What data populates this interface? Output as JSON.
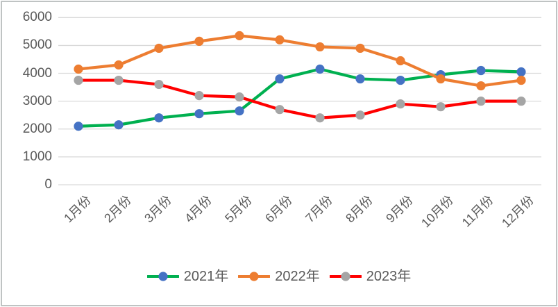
{
  "chart_data": {
    "type": "line",
    "categories": [
      "1月份",
      "2月份",
      "3月份",
      "4月份",
      "5月份",
      "6月份",
      "7月份",
      "8月份",
      "9月份",
      "10月份",
      "11月份",
      "12月份"
    ],
    "series": [
      {
        "name": "2021年",
        "line_color": "#00B050",
        "marker_color": "#4472C4",
        "values": [
          2100,
          2150,
          2400,
          2550,
          2650,
          3800,
          4150,
          3800,
          3750,
          3950,
          4100,
          4050
        ]
      },
      {
        "name": "2022年",
        "line_color": "#ED7D31",
        "marker_color": "#ED7D31",
        "values": [
          4150,
          4300,
          4900,
          5150,
          5350,
          5200,
          4950,
          4900,
          4450,
          3800,
          3550,
          3750
        ]
      },
      {
        "name": "2023年",
        "line_color": "#FF0000",
        "marker_color": "#A5A5A5",
        "values": [
          3750,
          3750,
          3600,
          3200,
          3150,
          2700,
          2400,
          2500,
          2900,
          2800,
          3000,
          3000
        ]
      }
    ],
    "title": "",
    "xlabel": "",
    "ylabel": "",
    "ylim": [
      0,
      6000
    ],
    "yticks": [
      0,
      1000,
      2000,
      3000,
      4000,
      5000,
      6000
    ],
    "grid": "horizontal",
    "legend_position": "bottom-center"
  },
  "colors": {
    "text": "#595959",
    "gridline": "#D9D9D9",
    "frame_border": "#BFC3C3",
    "background": "#FFFFFF"
  }
}
